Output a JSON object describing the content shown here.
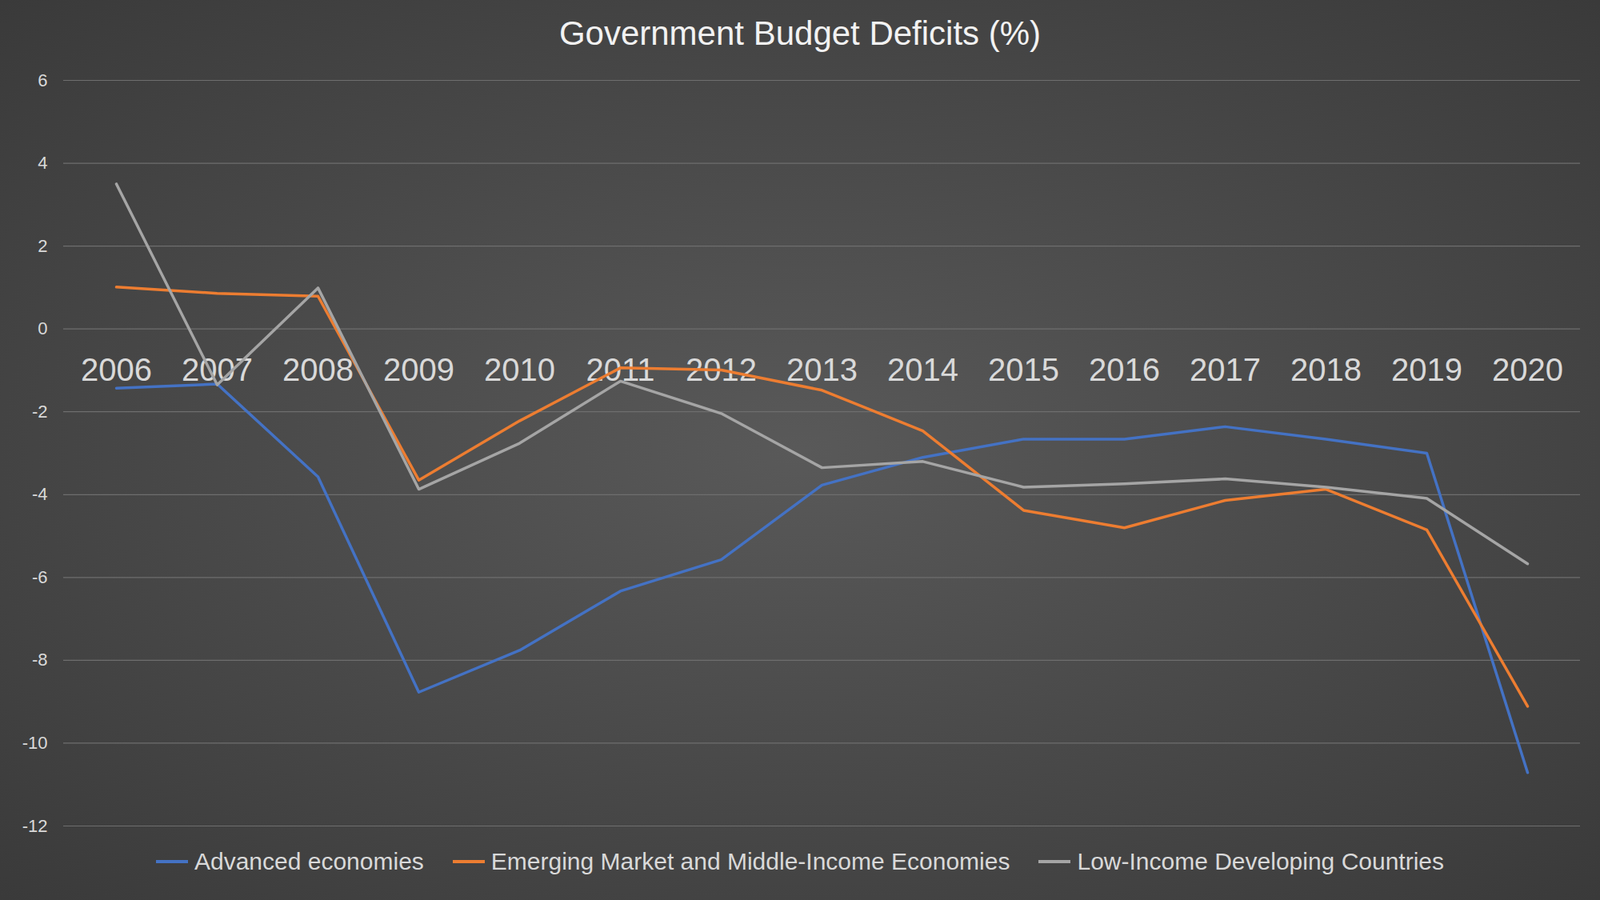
{
  "chart_data": {
    "type": "line",
    "title": "Government Budget Deficits (%)",
    "categories": [
      "2006",
      "2007",
      "2008",
      "2009",
      "2010",
      "2011",
      "2012",
      "2013",
      "2014",
      "2015",
      "2016",
      "2017",
      "2018",
      "2019",
      "2020"
    ],
    "series": [
      {
        "name": "Advanced economies",
        "color": "#4472c4",
        "values": [
          -1.43,
          -1.33,
          -3.57,
          -8.77,
          -7.76,
          -6.33,
          -5.57,
          -3.77,
          -3.1,
          -2.66,
          -2.66,
          -2.36,
          -2.66,
          -3.0,
          -10.71
        ]
      },
      {
        "name": "Emerging Market and Middle-Income Economies",
        "color": "#ed7d31",
        "values": [
          1.01,
          0.86,
          0.79,
          -3.65,
          -2.22,
          -0.94,
          -0.99,
          -1.48,
          -2.46,
          -4.38,
          -4.8,
          -4.14,
          -3.87,
          -4.85,
          -9.11
        ]
      },
      {
        "name": "Low-Income Developing Countries",
        "color": "#a5a5a5",
        "values": [
          3.5,
          -1.35,
          0.99,
          -3.87,
          -2.76,
          -1.26,
          -2.04,
          -3.35,
          -3.2,
          -3.82,
          -3.74,
          -3.62,
          -3.82,
          -4.09,
          -5.67
        ]
      }
    ],
    "ylim": [
      -12,
      6
    ],
    "yticks": [
      -12,
      -10,
      -8,
      -6,
      -4,
      -2,
      0,
      2,
      4,
      6
    ],
    "grid": true,
    "legend": "bottom"
  }
}
